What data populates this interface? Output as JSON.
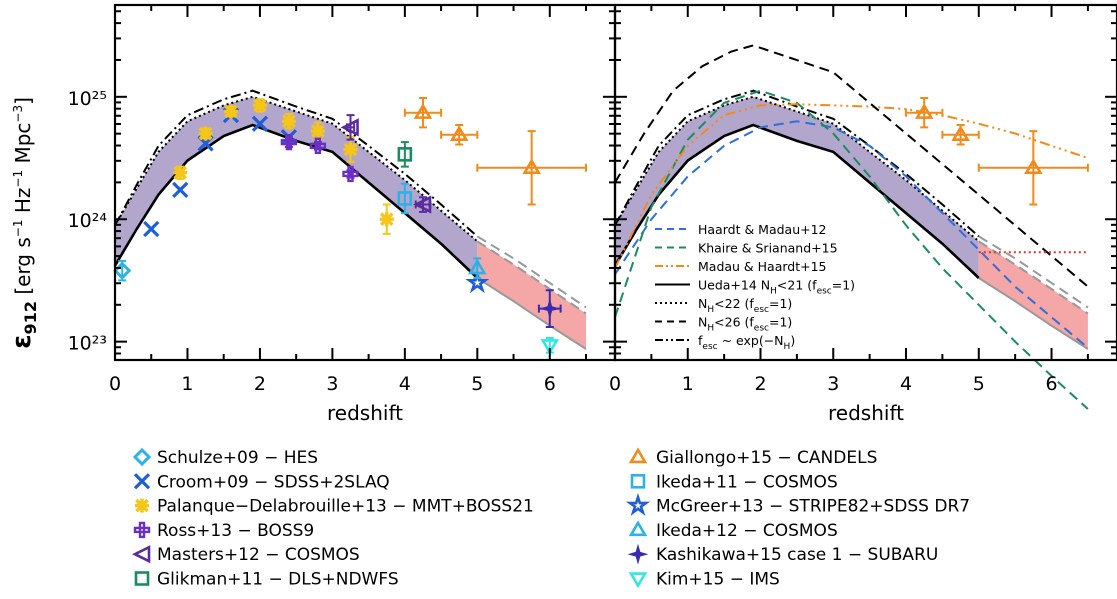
{
  "chart_data": {
    "type": "scatter",
    "xlabel": "redshift",
    "ylabel": "ε912 [erg s⁻¹ Hz⁻¹ Mpc⁻³]",
    "xlim": [
      0,
      6.9
    ],
    "ylog": true,
    "ylim_log10": [
      22.85,
      25.75
    ],
    "x_ticks": [
      "0",
      "1",
      "2",
      "3",
      "4",
      "5",
      "6"
    ],
    "y_ticks": [
      "10²³",
      "10²⁴",
      "10²⁵"
    ],
    "band": {
      "color": "#b3a6cc",
      "lower": [
        [
          0,
          23.62
        ],
        [
          0.3,
          23.92
        ],
        [
          0.6,
          24.2
        ],
        [
          1,
          24.48
        ],
        [
          1.5,
          24.68
        ],
        [
          1.9,
          24.77
        ],
        [
          2.5,
          24.64
        ],
        [
          3,
          24.55
        ],
        [
          3.5,
          24.3
        ],
        [
          4,
          24.05
        ],
        [
          4.5,
          23.8
        ],
        [
          5,
          23.52
        ]
      ],
      "upper": [
        [
          0,
          23.95
        ],
        [
          0.3,
          24.25
        ],
        [
          0.6,
          24.55
        ],
        [
          1,
          24.8
        ],
        [
          1.5,
          24.93
        ],
        [
          1.9,
          25.0
        ],
        [
          2.5,
          24.88
        ],
        [
          3,
          24.78
        ],
        [
          3.5,
          24.55
        ],
        [
          4,
          24.32
        ],
        [
          4.5,
          24.07
        ],
        [
          5,
          23.82
        ]
      ]
    },
    "extrap_band": {
      "color": "#f5a6a6",
      "lower": [
        [
          5,
          23.52
        ],
        [
          5.5,
          23.33
        ],
        [
          6,
          23.13
        ],
        [
          6.5,
          22.94
        ]
      ],
      "upper": [
        [
          5,
          23.82
        ],
        [
          5.5,
          23.63
        ],
        [
          6,
          23.43
        ],
        [
          6.5,
          23.23
        ]
      ]
    },
    "model_curves": [
      {
        "label": "Ueda+14 N",
        "style": "solid",
        "points": [
          [
            0,
            23.62
          ],
          [
            0.3,
            23.92
          ],
          [
            0.6,
            24.2
          ],
          [
            1,
            24.48
          ],
          [
            1.5,
            24.68
          ],
          [
            1.9,
            24.77
          ],
          [
            2.5,
            24.64
          ],
          [
            3,
            24.55
          ],
          [
            3.5,
            24.3
          ],
          [
            4,
            24.05
          ],
          [
            4.5,
            23.8
          ],
          [
            5,
            23.52
          ]
        ],
        "ext": [
          [
            5,
            23.52
          ],
          [
            5.5,
            23.33
          ],
          [
            6,
            23.13
          ],
          [
            6.5,
            22.94
          ]
        ]
      },
      {
        "label": "N",
        "style": "dotted",
        "points": [
          [
            0,
            23.95
          ],
          [
            0.3,
            24.25
          ],
          [
            0.6,
            24.55
          ],
          [
            1,
            24.8
          ],
          [
            1.5,
            24.93
          ],
          [
            1.9,
            25.0
          ],
          [
            2.5,
            24.88
          ],
          [
            3,
            24.78
          ],
          [
            3.5,
            24.55
          ],
          [
            4,
            24.32
          ],
          [
            4.5,
            24.07
          ],
          [
            5,
            23.82
          ]
        ],
        "ext": [
          [
            5,
            23.82
          ],
          [
            5.5,
            23.63
          ],
          [
            6,
            23.43
          ],
          [
            6.5,
            23.23
          ]
        ]
      },
      {
        "label": "f",
        "style": "dashdot",
        "points": [
          [
            0,
            23.95
          ],
          [
            0.3,
            24.28
          ],
          [
            0.6,
            24.6
          ],
          [
            1,
            24.85
          ],
          [
            1.5,
            24.98
          ],
          [
            1.9,
            25.05
          ],
          [
            2.5,
            24.92
          ],
          [
            3,
            24.82
          ],
          [
            3.5,
            24.6
          ],
          [
            4,
            24.37
          ],
          [
            4.5,
            24.12
          ],
          [
            5,
            23.86
          ]
        ],
        "ext": [
          [
            5,
            23.86
          ],
          [
            5.5,
            23.68
          ],
          [
            6,
            23.48
          ],
          [
            6.5,
            23.28
          ]
        ]
      }
    ],
    "right_extra_curves": [
      {
        "label": "Haardt & Madau+12",
        "color": "#2f6fd6",
        "style": "dashed",
        "points": [
          [
            0,
            23.55
          ],
          [
            0.5,
            24.0
          ],
          [
            1,
            24.35
          ],
          [
            1.5,
            24.6
          ],
          [
            2,
            24.75
          ],
          [
            2.5,
            24.8
          ],
          [
            3,
            24.75
          ],
          [
            3.5,
            24.6
          ],
          [
            4,
            24.35
          ],
          [
            4.5,
            24.05
          ],
          [
            5,
            23.75
          ],
          [
            5.5,
            23.45
          ],
          [
            6,
            23.2
          ],
          [
            6.5,
            22.95
          ]
        ]
      },
      {
        "label": "Khaire & Srianand+15",
        "color": "#1a8c5e",
        "style": "dashed",
        "points": [
          [
            0,
            23.2
          ],
          [
            0.5,
            24.1
          ],
          [
            1,
            24.65
          ],
          [
            1.5,
            24.95
          ],
          [
            2,
            25.05
          ],
          [
            2.5,
            24.95
          ],
          [
            3,
            24.7
          ],
          [
            3.5,
            24.35
          ],
          [
            4,
            23.95
          ],
          [
            4.5,
            23.6
          ],
          [
            5,
            23.3
          ],
          [
            5.5,
            23.0
          ],
          [
            6,
            22.72
          ],
          [
            6.5,
            22.45
          ]
        ]
      },
      {
        "label": "Madau & Haardt+15",
        "color": "#f28a1a",
        "style": "dashdotdotdot",
        "points": [
          [
            0,
            23.6
          ],
          [
            0.5,
            24.2
          ],
          [
            1,
            24.6
          ],
          [
            1.5,
            24.85
          ],
          [
            2,
            24.93
          ],
          [
            2.5,
            24.94
          ],
          [
            3,
            24.93
          ],
          [
            3.5,
            24.92
          ],
          [
            4,
            24.9
          ],
          [
            4.5,
            24.85
          ],
          [
            5,
            24.78
          ],
          [
            5.5,
            24.7
          ],
          [
            6,
            24.6
          ],
          [
            6.5,
            24.5
          ]
        ]
      },
      {
        "label": "N",
        "color": "#000000",
        "style": "dashed",
        "points": [
          [
            0,
            24.3
          ],
          [
            0.4,
            24.7
          ],
          [
            0.8,
            25.05
          ],
          [
            1.2,
            25.25
          ],
          [
            1.6,
            25.37
          ],
          [
            1.9,
            25.42
          ],
          [
            2.5,
            25.3
          ],
          [
            3,
            25.2
          ],
          [
            3.5,
            24.95
          ],
          [
            4,
            24.7
          ],
          [
            4.5,
            24.45
          ],
          [
            5,
            24.2
          ],
          [
            5.5,
            23.95
          ],
          [
            6,
            23.7
          ],
          [
            6.5,
            23.45
          ]
        ]
      },
      {
        "label": "",
        "color": "#e03030",
        "style": "dotted",
        "points": [
          [
            5,
            23.73
          ],
          [
            6.5,
            23.73
          ]
        ]
      }
    ],
    "observations": [
      {
        "label": "Schulze+09  −  HES",
        "color": "#2bb3e6",
        "marker": "diamond",
        "points": [
          [
            0.1,
            23.58,
            0.08,
            0
          ]
        ]
      },
      {
        "label": "Croom+09  −  SDSS+2SLAQ",
        "color": "#1f5fd6",
        "marker": "x",
        "points": [
          [
            0.5,
            23.92,
            0,
            0
          ],
          [
            0.9,
            24.24,
            0,
            0
          ],
          [
            1.25,
            24.62,
            0,
            0
          ],
          [
            1.6,
            24.85,
            0,
            0
          ],
          [
            2.0,
            24.78,
            0,
            0
          ],
          [
            2.4,
            24.67,
            0,
            0
          ]
        ]
      },
      {
        "label": "Palanque−Delabrouille+13  −  MMT+BOSS21",
        "color": "#f5c518",
        "marker": "asterisk",
        "points": [
          [
            0.9,
            24.38,
            0.05,
            0
          ],
          [
            1.25,
            24.7,
            0.04,
            0
          ],
          [
            1.6,
            24.88,
            0.04,
            0
          ],
          [
            2.0,
            24.93,
            0.05,
            0
          ],
          [
            2.4,
            24.8,
            0.06,
            0
          ],
          [
            2.8,
            24.72,
            0.07,
            0
          ],
          [
            3.25,
            24.57,
            0.1,
            0
          ],
          [
            3.75,
            24.0,
            0.12,
            0
          ]
        ]
      },
      {
        "label": "Ross+13  −  BOSS9",
        "color": "#6a2fc9",
        "marker": "plus",
        "points": [
          [
            2.4,
            24.63,
            0.04,
            0
          ],
          [
            2.8,
            24.6,
            0.03,
            0
          ],
          [
            3.25,
            24.37,
            0.03,
            0
          ]
        ]
      },
      {
        "label": "Masters+12  −  COSMOS",
        "color": "#5b2a9e",
        "marker": "tri-left",
        "points": [
          [
            3.25,
            24.75,
            0.1,
            0.05
          ],
          [
            4.25,
            24.12,
            0.06,
            0.1
          ]
        ]
      },
      {
        "label": "Glikman+11  −  DLS+NDWFS",
        "color": "#1a8c5e",
        "marker": "square",
        "points": [
          [
            4.0,
            24.53,
            0.1,
            0
          ]
        ]
      },
      {
        "label": "Giallongo+15  −  CANDELS",
        "color": "#f28a1a",
        "marker": "triangle",
        "points": [
          [
            4.25,
            24.87,
            0.12,
            0.25
          ],
          [
            4.75,
            24.69,
            0.08,
            0.25
          ],
          [
            5.75,
            24.42,
            0.3,
            0.75
          ]
        ]
      },
      {
        "label": "Ikeda+11  −  COSMOS",
        "color": "#2bb3e6",
        "marker": "square",
        "points": [
          [
            4.0,
            24.17,
            0.12,
            0
          ]
        ]
      },
      {
        "label": "McGreer+13  −  STRIPE82+SDSS DR7",
        "color": "#1f5fd6",
        "marker": "star",
        "points": [
          [
            5.0,
            23.48,
            0,
            0
          ]
        ]
      },
      {
        "label": "Ikeda+12  −  COSMOS",
        "color": "#2bb3e6",
        "marker": "triangle",
        "points": [
          [
            5.0,
            23.6,
            0.08,
            0
          ]
        ]
      },
      {
        "label": "Kashikawa+15 case 1  −  SUBARU",
        "color": "#3a2bb0",
        "marker": "diamond4",
        "points": [
          [
            6.0,
            23.27,
            0.15,
            0.15
          ]
        ]
      },
      {
        "label": "Kim+15  −  IMS",
        "color": "#33e6e6",
        "marker": "tri-down",
        "points": [
          [
            6.0,
            22.97,
            0.06,
            0
          ]
        ]
      }
    ],
    "right_observations": [
      {
        "color": "#f28a1a",
        "marker": "triangle",
        "points": [
          [
            4.25,
            24.87,
            0.12,
            0.25
          ],
          [
            4.75,
            24.69,
            0.08,
            0.25
          ],
          [
            5.75,
            24.42,
            0.3,
            0.75
          ]
        ]
      }
    ]
  },
  "inner_legend": [
    {
      "text": "Haardt & Madau+12",
      "color": "#2f6fd6",
      "style": "dashed"
    },
    {
      "text": "Khaire & Srianand+15",
      "color": "#1a8c5e",
      "style": "dashed"
    },
    {
      "text": "Madau & Haardt+15",
      "color": "#f28a1a",
      "style": "dashdotdotdot"
    },
    {
      "text": "Ueda+14 N",
      "sub": "H",
      "rest": "<21 (f",
      "sub2": "esc",
      "rest2": "=1)",
      "color": "#000000",
      "style": "solid"
    },
    {
      "text": "N",
      "sub": "H",
      "rest": "<22 (f",
      "sub2": "esc",
      "rest2": "=1)",
      "color": "#000000",
      "style": "dotted"
    },
    {
      "text": "N",
      "sub": "H",
      "rest": "<26 (f",
      "sub2": "esc",
      "rest2": "=1)",
      "color": "#000000",
      "style": "dashed"
    },
    {
      "text": "f",
      "sub": "esc",
      "rest": " ~ exp(−N",
      "sub2": "H",
      "rest2": ")",
      "color": "#000000",
      "style": "dashdotdotdot"
    }
  ],
  "bottom_legend_left": [
    "Schulze+09  −  HES",
    "Croom+09  −  SDSS+2SLAQ",
    "Palanque−Delabrouille+13  −  MMT+BOSS21",
    "Ross+13  −  BOSS9",
    "Masters+12  −  COSMOS",
    "Glikman+11  −  DLS+NDWFS"
  ],
  "bottom_legend_right": [
    "Giallongo+15  −  CANDELS",
    "Ikeda+11  −  COSMOS",
    "McGreer+13  −  STRIPE82+SDSS DR7",
    "Ikeda+12  −  COSMOS",
    "Kashikawa+15 case 1  −  SUBARU",
    "Kim+15  −  IMS"
  ]
}
